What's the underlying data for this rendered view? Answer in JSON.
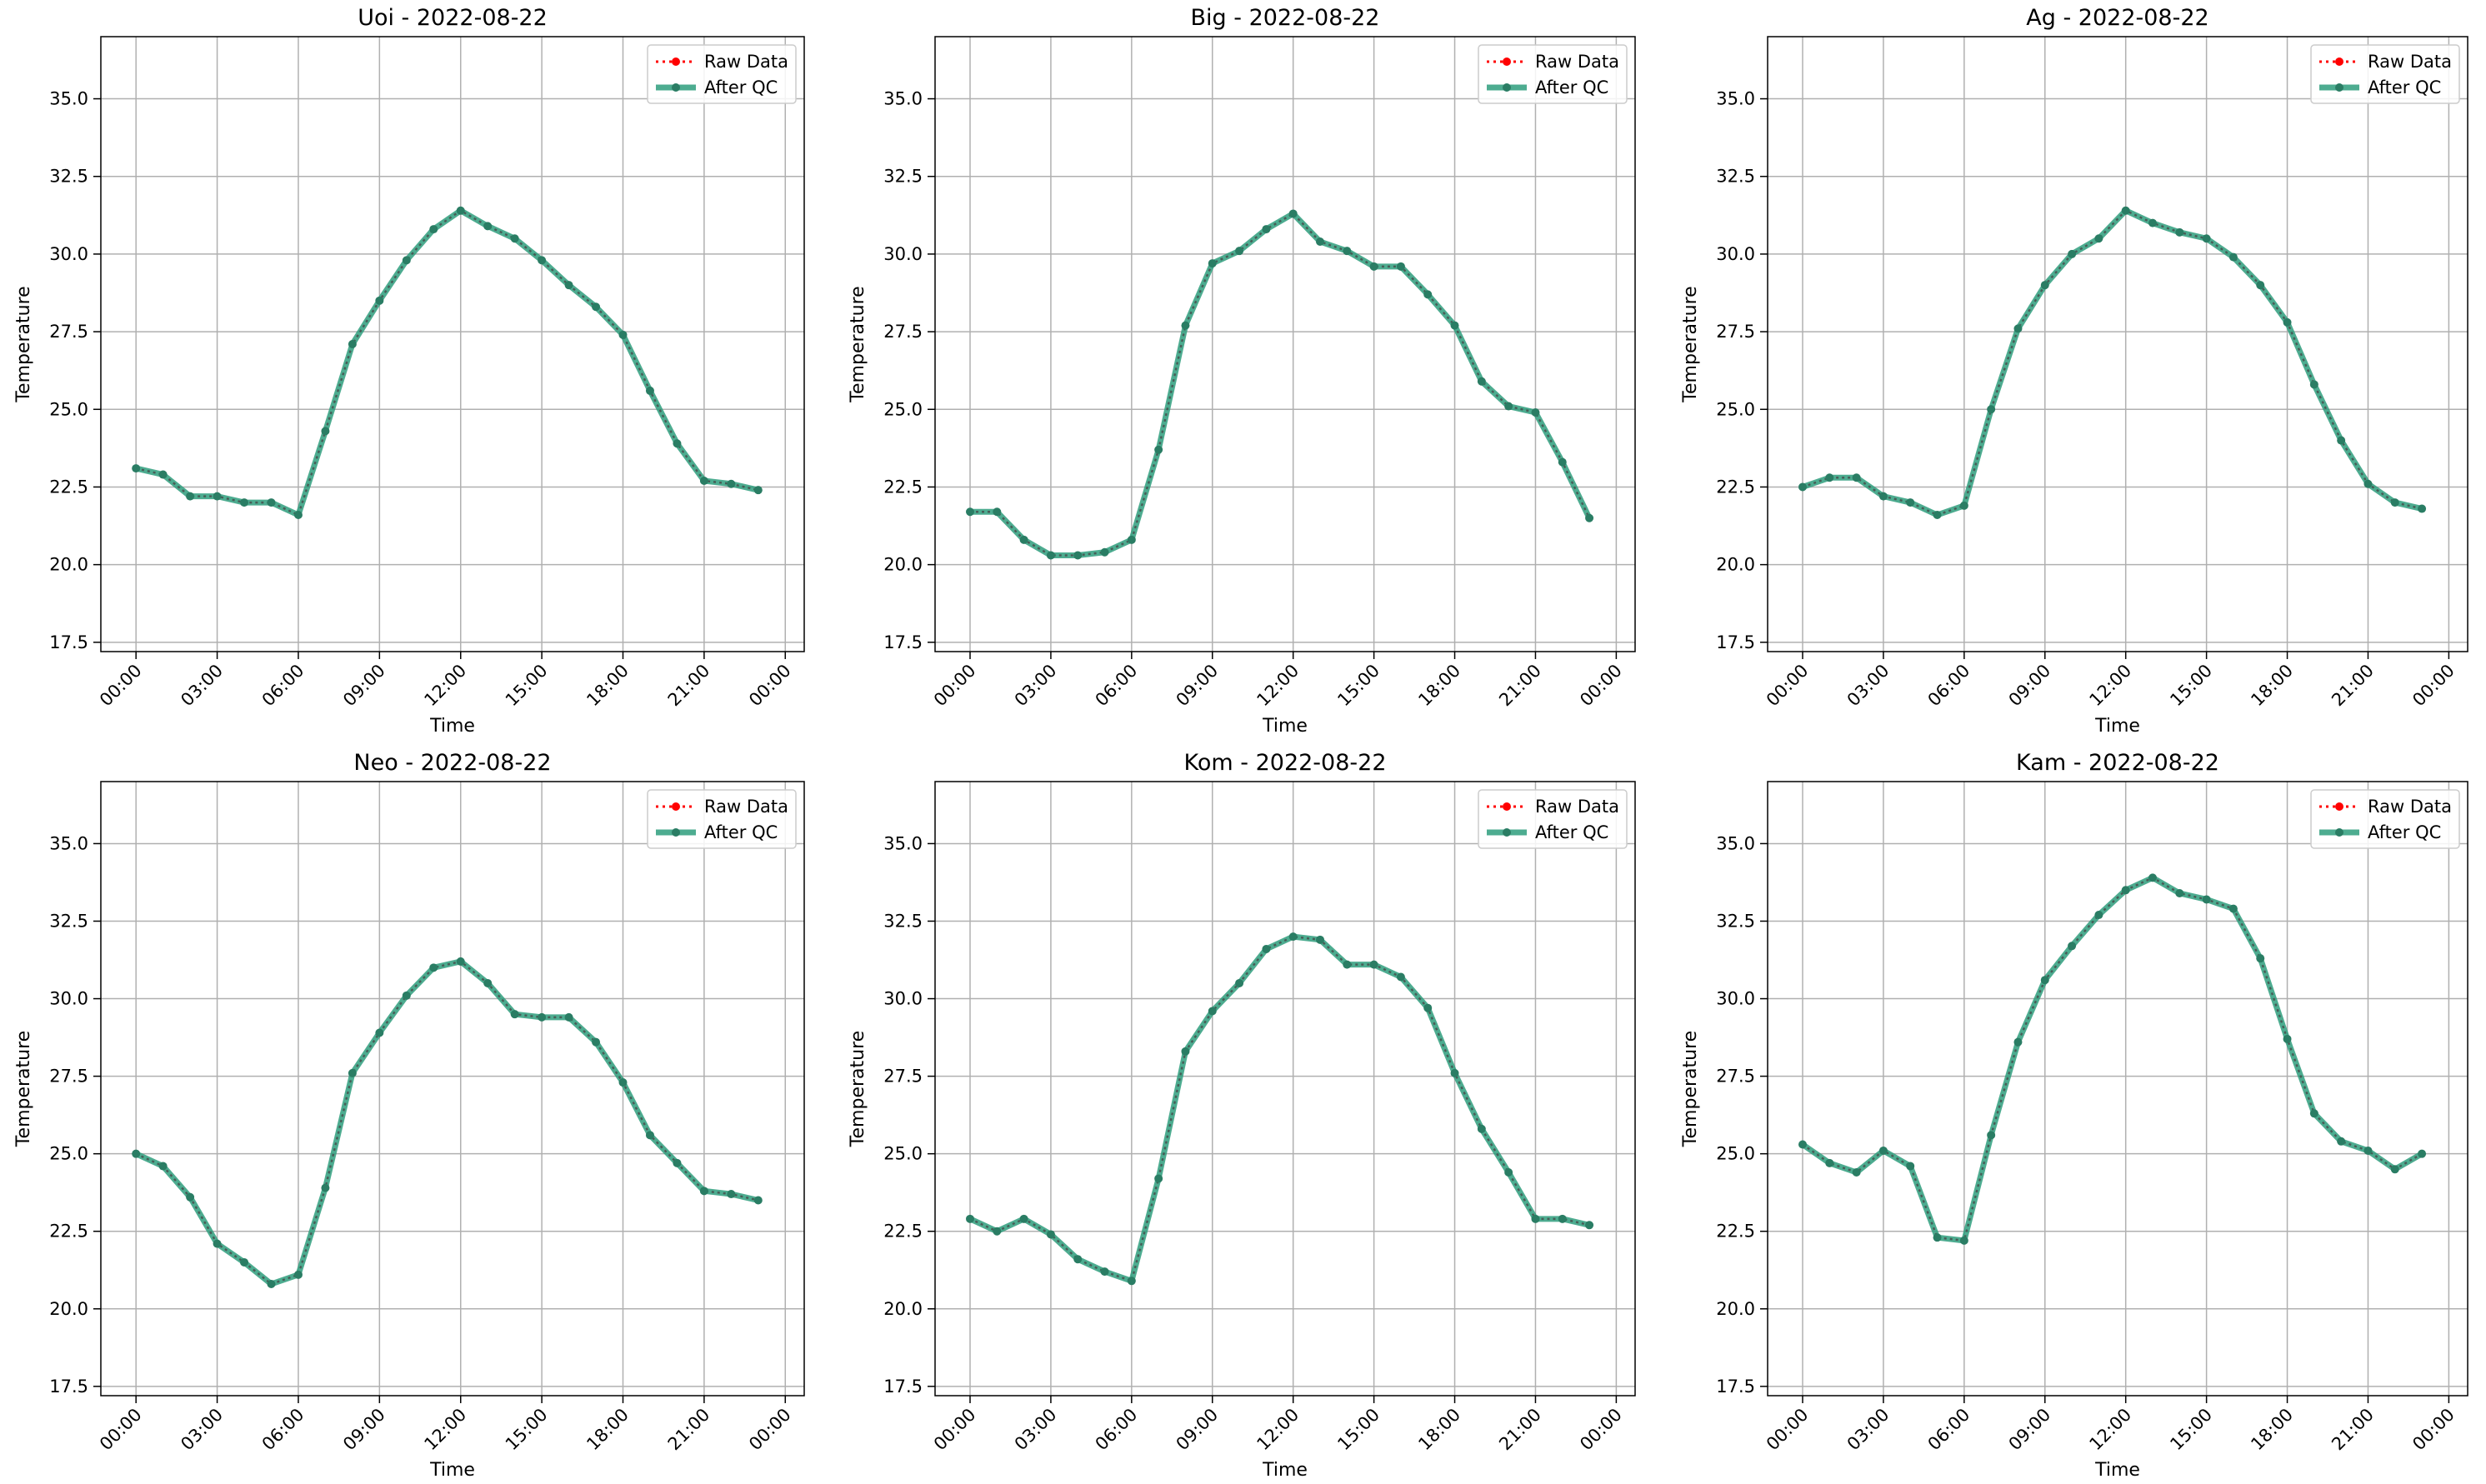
{
  "figure": {
    "background": "#ffffff",
    "legend": {
      "raw_label": "Raw Data",
      "qc_label": "After QC"
    },
    "colors": {
      "raw": "#ff0000",
      "qc": "#2e9e7d",
      "grid": "#b0b0b0"
    }
  },
  "chart_data": [
    {
      "type": "line",
      "title": "Uoi - 2022-08-22",
      "xlabel": "Time",
      "ylabel": "Temperature",
      "ylim": [
        17.2,
        37.0
      ],
      "yticks": [
        "17.5",
        "20.0",
        "22.5",
        "25.0",
        "27.5",
        "30.0",
        "32.5",
        "35.0"
      ],
      "xticks": [
        "00:00",
        "03:00",
        "06:00",
        "09:00",
        "12:00",
        "15:00",
        "18:00",
        "21:00",
        "00:00"
      ],
      "grid": true,
      "legend_position": "top-right",
      "series": [
        {
          "name": "Raw Data",
          "values": [
            23.1,
            22.9,
            22.2,
            22.2,
            22.0,
            22.0,
            21.6,
            24.3,
            27.1,
            28.5,
            29.8,
            30.8,
            31.4,
            30.9,
            30.5,
            29.8,
            29.0,
            28.3,
            27.4,
            25.6,
            23.9,
            22.7,
            22.6,
            22.4
          ]
        },
        {
          "name": "After QC",
          "values": [
            23.1,
            22.9,
            22.2,
            22.2,
            22.0,
            22.0,
            21.6,
            24.3,
            27.1,
            28.5,
            29.8,
            30.8,
            31.4,
            30.9,
            30.5,
            29.8,
            29.0,
            28.3,
            27.4,
            25.6,
            23.9,
            22.7,
            22.6,
            22.4
          ]
        }
      ]
    },
    {
      "type": "line",
      "title": "Big - 2022-08-22",
      "xlabel": "Time",
      "ylabel": "Temperature",
      "ylim": [
        17.2,
        37.0
      ],
      "yticks": [
        "17.5",
        "20.0",
        "22.5",
        "25.0",
        "27.5",
        "30.0",
        "32.5",
        "35.0"
      ],
      "xticks": [
        "00:00",
        "03:00",
        "06:00",
        "09:00",
        "12:00",
        "15:00",
        "18:00",
        "21:00",
        "00:00"
      ],
      "grid": true,
      "legend_position": "top-right",
      "series": [
        {
          "name": "Raw Data",
          "values": [
            21.7,
            21.7,
            20.8,
            20.3,
            20.3,
            20.4,
            20.8,
            23.7,
            27.7,
            29.7,
            30.1,
            30.8,
            31.3,
            30.4,
            30.1,
            29.6,
            29.6,
            28.7,
            27.7,
            25.9,
            25.1,
            24.9,
            23.3,
            21.5
          ]
        },
        {
          "name": "After QC",
          "values": [
            21.7,
            21.7,
            20.8,
            20.3,
            20.3,
            20.4,
            20.8,
            23.7,
            27.7,
            29.7,
            30.1,
            30.8,
            31.3,
            30.4,
            30.1,
            29.6,
            29.6,
            28.7,
            27.7,
            25.9,
            25.1,
            24.9,
            23.3,
            21.5
          ]
        }
      ]
    },
    {
      "type": "line",
      "title": "Ag - 2022-08-22",
      "xlabel": "Time",
      "ylabel": "Temperature",
      "ylim": [
        17.2,
        37.0
      ],
      "yticks": [
        "17.5",
        "20.0",
        "22.5",
        "25.0",
        "27.5",
        "30.0",
        "32.5",
        "35.0"
      ],
      "xticks": [
        "00:00",
        "03:00",
        "06:00",
        "09:00",
        "12:00",
        "15:00",
        "18:00",
        "21:00",
        "00:00"
      ],
      "grid": true,
      "legend_position": "top-right",
      "series": [
        {
          "name": "Raw Data",
          "values": [
            22.5,
            22.8,
            22.8,
            22.2,
            22.0,
            21.6,
            21.9,
            25.0,
            27.6,
            29.0,
            30.0,
            30.5,
            31.4,
            31.0,
            30.7,
            30.5,
            29.9,
            29.0,
            27.8,
            25.8,
            24.0,
            22.6,
            22.0,
            21.8
          ]
        },
        {
          "name": "After QC",
          "values": [
            22.5,
            22.8,
            22.8,
            22.2,
            22.0,
            21.6,
            21.9,
            25.0,
            27.6,
            29.0,
            30.0,
            30.5,
            31.4,
            31.0,
            30.7,
            30.5,
            29.9,
            29.0,
            27.8,
            25.8,
            24.0,
            22.6,
            22.0,
            21.8
          ]
        }
      ]
    },
    {
      "type": "line",
      "title": "Neo - 2022-08-22",
      "xlabel": "Time",
      "ylabel": "Temperature",
      "ylim": [
        17.2,
        37.0
      ],
      "yticks": [
        "17.5",
        "20.0",
        "22.5",
        "25.0",
        "27.5",
        "30.0",
        "32.5",
        "35.0"
      ],
      "xticks": [
        "00:00",
        "03:00",
        "06:00",
        "09:00",
        "12:00",
        "15:00",
        "18:00",
        "21:00",
        "00:00"
      ],
      "grid": true,
      "legend_position": "top-right",
      "series": [
        {
          "name": "Raw Data",
          "values": [
            25.0,
            24.6,
            23.6,
            22.1,
            21.5,
            20.8,
            21.1,
            23.9,
            27.6,
            28.9,
            30.1,
            31.0,
            31.2,
            30.5,
            29.5,
            29.4,
            29.4,
            28.6,
            27.3,
            25.6,
            24.7,
            23.8,
            23.7,
            23.5
          ]
        },
        {
          "name": "After QC",
          "values": [
            25.0,
            24.6,
            23.6,
            22.1,
            21.5,
            20.8,
            21.1,
            23.9,
            27.6,
            28.9,
            30.1,
            31.0,
            31.2,
            30.5,
            29.5,
            29.4,
            29.4,
            28.6,
            27.3,
            25.6,
            24.7,
            23.8,
            23.7,
            23.5
          ]
        }
      ]
    },
    {
      "type": "line",
      "title": "Kom - 2022-08-22",
      "xlabel": "Time",
      "ylabel": "Temperature",
      "ylim": [
        17.2,
        37.0
      ],
      "yticks": [
        "17.5",
        "20.0",
        "22.5",
        "25.0",
        "27.5",
        "30.0",
        "32.5",
        "35.0"
      ],
      "xticks": [
        "00:00",
        "03:00",
        "06:00",
        "09:00",
        "12:00",
        "15:00",
        "18:00",
        "21:00",
        "00:00"
      ],
      "grid": true,
      "legend_position": "top-right",
      "series": [
        {
          "name": "Raw Data",
          "values": [
            22.9,
            22.5,
            22.9,
            22.4,
            21.6,
            21.2,
            20.9,
            24.2,
            28.3,
            29.6,
            30.5,
            31.6,
            32.0,
            31.9,
            31.1,
            31.1,
            30.7,
            29.7,
            27.6,
            25.8,
            24.4,
            22.9,
            22.9,
            22.7
          ]
        },
        {
          "name": "After QC",
          "values": [
            22.9,
            22.5,
            22.9,
            22.4,
            21.6,
            21.2,
            20.9,
            24.2,
            28.3,
            29.6,
            30.5,
            31.6,
            32.0,
            31.9,
            31.1,
            31.1,
            30.7,
            29.7,
            27.6,
            25.8,
            24.4,
            22.9,
            22.9,
            22.7
          ]
        }
      ]
    },
    {
      "type": "line",
      "title": "Kam - 2022-08-22",
      "xlabel": "Time",
      "ylabel": "Temperature",
      "ylim": [
        17.2,
        37.0
      ],
      "yticks": [
        "17.5",
        "20.0",
        "22.5",
        "25.0",
        "27.5",
        "30.0",
        "32.5",
        "35.0"
      ],
      "xticks": [
        "00:00",
        "03:00",
        "06:00",
        "09:00",
        "12:00",
        "15:00",
        "18:00",
        "21:00",
        "00:00"
      ],
      "grid": true,
      "legend_position": "top-right",
      "series": [
        {
          "name": "Raw Data",
          "values": [
            25.3,
            24.7,
            24.4,
            25.1,
            24.6,
            22.3,
            22.2,
            25.6,
            28.6,
            30.6,
            31.7,
            32.7,
            33.5,
            33.9,
            33.4,
            33.2,
            32.9,
            31.3,
            28.7,
            26.3,
            25.4,
            25.1,
            24.5,
            25.0
          ]
        },
        {
          "name": "After QC",
          "values": [
            25.3,
            24.7,
            24.4,
            25.1,
            24.6,
            22.3,
            22.2,
            25.6,
            28.6,
            30.6,
            31.7,
            32.7,
            33.5,
            33.9,
            33.4,
            33.2,
            32.9,
            31.3,
            28.7,
            26.3,
            25.4,
            25.1,
            24.5,
            25.0
          ]
        }
      ]
    }
  ]
}
